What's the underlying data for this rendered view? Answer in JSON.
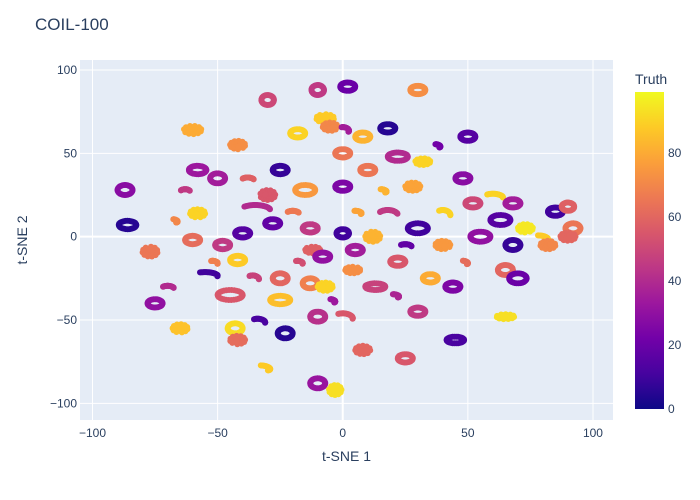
{
  "chart_data": {
    "type": "scatter",
    "title": "COIL-100",
    "xlabel": "t-SNE 1",
    "ylabel": "t-SNE 2",
    "xlim": [
      -105,
      108
    ],
    "ylim": [
      -110,
      106
    ],
    "xticks": [
      -100,
      -50,
      0,
      50,
      100
    ],
    "yticks": [
      -100,
      -50,
      0,
      50,
      100
    ],
    "xtick_labels": [
      "−100",
      "−50",
      "0",
      "50",
      "100"
    ],
    "ytick_labels": [
      "−100",
      "−50",
      "0",
      "50",
      "100"
    ],
    "grid": true,
    "colorbar": {
      "title": "Truth",
      "range": [
        0,
        99
      ],
      "ticks": [
        0,
        20,
        40,
        60,
        80
      ],
      "tick_labels": [
        "0",
        "20",
        "40",
        "60",
        "80"
      ],
      "colorscale": [
        "#0d0887",
        "#46039f",
        "#7201a8",
        "#9c179e",
        "#bd3786",
        "#d8576b",
        "#ed7953",
        "#fb9f3a",
        "#fdca26",
        "#f0f921"
      ]
    },
    "colors": {
      "plot_bg": "#e5ecf6",
      "grid": "#ffffff",
      "paper_bg": "#ffffff"
    },
    "clusters": [
      {
        "x": -87,
        "y": 28,
        "rx": 3,
        "ry": 3,
        "shape": "loop",
        "value": 28
      },
      {
        "x": -86,
        "y": 7,
        "rx": 3.5,
        "ry": 2.5,
        "shape": "loop",
        "value": 5
      },
      {
        "x": -77,
        "y": -9,
        "rx": 3,
        "ry": 3,
        "shape": "blob",
        "value": 65
      },
      {
        "x": -75,
        "y": -40,
        "rx": 3,
        "ry": 2.5,
        "shape": "loop",
        "value": 30
      },
      {
        "x": -65,
        "y": -55,
        "rx": 3,
        "ry": 2.5,
        "shape": "blob",
        "value": 86
      },
      {
        "x": -60,
        "y": 64,
        "rx": 3.5,
        "ry": 2.5,
        "shape": "blob",
        "value": 80
      },
      {
        "x": -58,
        "y": 40,
        "rx": 3.5,
        "ry": 2.5,
        "shape": "loop",
        "value": 33
      },
      {
        "x": -58,
        "y": 14,
        "rx": 3,
        "ry": 2.5,
        "shape": "blob",
        "value": 90
      },
      {
        "x": -60,
        "y": -2,
        "rx": 3,
        "ry": 2.5,
        "shape": "loop",
        "value": 62
      },
      {
        "x": -55,
        "y": -22,
        "rx": 5,
        "ry": 1.5,
        "shape": "arc",
        "value": 10
      },
      {
        "x": -48,
        "y": -5,
        "rx": 3,
        "ry": 2.5,
        "shape": "loop",
        "value": 45
      },
      {
        "x": -50,
        "y": 35,
        "rx": 3,
        "ry": 3,
        "shape": "loop",
        "value": 35
      },
      {
        "x": -42,
        "y": 55,
        "rx": 3,
        "ry": 2.5,
        "shape": "blob",
        "value": 72
      },
      {
        "x": -35,
        "y": 18,
        "rx": 6,
        "ry": 2,
        "shape": "arc",
        "value": 40
      },
      {
        "x": -40,
        "y": 2,
        "rx": 3,
        "ry": 2.5,
        "shape": "loop",
        "value": 15
      },
      {
        "x": -42,
        "y": -14,
        "rx": 3,
        "ry": 2.5,
        "shape": "loop",
        "value": 88
      },
      {
        "x": -45,
        "y": -35,
        "rx": 5,
        "ry": 3,
        "shape": "loop",
        "value": 55
      },
      {
        "x": -43,
        "y": -55,
        "rx": 3,
        "ry": 3,
        "shape": "loop",
        "value": 92
      },
      {
        "x": -42,
        "y": -62,
        "rx": 3,
        "ry": 2.5,
        "shape": "blob",
        "value": 62
      },
      {
        "x": -34,
        "y": -50,
        "rx": 3,
        "ry": 1.5,
        "shape": "arc",
        "value": 12
      },
      {
        "x": -33,
        "y": -78,
        "rx": 4,
        "ry": 1.5,
        "shape": "arc",
        "value": 88
      },
      {
        "x": -30,
        "y": 82,
        "rx": 2.5,
        "ry": 3,
        "shape": "loop",
        "value": 50
      },
      {
        "x": -25,
        "y": 40,
        "rx": 3,
        "ry": 2.5,
        "shape": "loop",
        "value": 8
      },
      {
        "x": -30,
        "y": 25,
        "rx": 3,
        "ry": 3,
        "shape": "blob",
        "value": 55
      },
      {
        "x": -28,
        "y": 8,
        "rx": 3,
        "ry": 2.5,
        "shape": "loop",
        "value": 18
      },
      {
        "x": -25,
        "y": -25,
        "rx": 3,
        "ry": 3,
        "shape": "loop",
        "value": 60
      },
      {
        "x": -25,
        "y": -38,
        "rx": 4,
        "ry": 2.5,
        "shape": "loop",
        "value": 85
      },
      {
        "x": -23,
        "y": -58,
        "rx": 3,
        "ry": 3,
        "shape": "loop",
        "value": 5
      },
      {
        "x": -18,
        "y": 62,
        "rx": 3,
        "ry": 2.5,
        "shape": "loop",
        "value": 90
      },
      {
        "x": -15,
        "y": 28,
        "rx": 4,
        "ry": 3,
        "shape": "loop",
        "value": 75
      },
      {
        "x": -13,
        "y": 5,
        "rx": 3,
        "ry": 2.5,
        "shape": "loop",
        "value": 45
      },
      {
        "x": -12,
        "y": -8,
        "rx": 3,
        "ry": 2,
        "shape": "blob",
        "value": 58
      },
      {
        "x": -13,
        "y": -28,
        "rx": 3,
        "ry": 3,
        "shape": "loop",
        "value": 68
      },
      {
        "x": -10,
        "y": -48,
        "rx": 3,
        "ry": 3,
        "shape": "loop",
        "value": 42
      },
      {
        "x": -10,
        "y": -88,
        "rx": 3,
        "ry": 3,
        "shape": "loop",
        "value": 32
      },
      {
        "x": -8,
        "y": -12,
        "rx": 3,
        "ry": 2.5,
        "shape": "loop",
        "value": 30
      },
      {
        "x": -10,
        "y": 88,
        "rx": 2.5,
        "ry": 3,
        "shape": "loop",
        "value": 45
      },
      {
        "x": -7,
        "y": 71,
        "rx": 3.5,
        "ry": 2.5,
        "shape": "blob",
        "value": 88
      },
      {
        "x": -5,
        "y": 66,
        "rx": 3,
        "ry": 2.5,
        "shape": "blob",
        "value": 70
      },
      {
        "x": 2,
        "y": 90,
        "rx": 3,
        "ry": 2.5,
        "shape": "loop",
        "value": 20
      },
      {
        "x": 0,
        "y": 65,
        "rx": 2.5,
        "ry": 1.5,
        "shape": "arc",
        "value": 35
      },
      {
        "x": 0,
        "y": 30,
        "rx": 3,
        "ry": 2.5,
        "shape": "loop",
        "value": 25
      },
      {
        "x": 0,
        "y": 2,
        "rx": 2.5,
        "ry": 2.5,
        "shape": "loop",
        "value": 10
      },
      {
        "x": 0,
        "y": 50,
        "rx": 3,
        "ry": 2.5,
        "shape": "loop",
        "value": 65
      },
      {
        "x": -7,
        "y": -30,
        "rx": 3,
        "ry": 2.5,
        "shape": "blob",
        "value": 90
      },
      {
        "x": 0,
        "y": -47,
        "rx": 4,
        "ry": 2,
        "shape": "arc",
        "value": 55
      },
      {
        "x": -3,
        "y": -92,
        "rx": 2.5,
        "ry": 3,
        "shape": "blob",
        "value": 93
      },
      {
        "x": 4,
        "y": -20,
        "rx": 3,
        "ry": 2,
        "shape": "blob",
        "value": 72
      },
      {
        "x": 5,
        "y": -8,
        "rx": 3,
        "ry": 2.5,
        "shape": "loop",
        "value": 35
      },
      {
        "x": 8,
        "y": 60,
        "rx": 3,
        "ry": 2.5,
        "shape": "loop",
        "value": 82
      },
      {
        "x": 10,
        "y": 40,
        "rx": 3,
        "ry": 2.5,
        "shape": "loop",
        "value": 65
      },
      {
        "x": 12,
        "y": 0,
        "rx": 3,
        "ry": 3,
        "shape": "blob",
        "value": 82
      },
      {
        "x": 13,
        "y": -30,
        "rx": 4,
        "ry": 2,
        "shape": "loop",
        "value": 48
      },
      {
        "x": 8,
        "y": -68,
        "rx": 3,
        "ry": 2.5,
        "shape": "blob",
        "value": 60
      },
      {
        "x": 18,
        "y": 65,
        "rx": 3,
        "ry": 2.5,
        "shape": "loop",
        "value": 5
      },
      {
        "x": 18,
        "y": 15,
        "rx": 4,
        "ry": 2,
        "shape": "arc",
        "value": 45
      },
      {
        "x": 22,
        "y": 48,
        "rx": 4,
        "ry": 2.5,
        "shape": "loop",
        "value": 40
      },
      {
        "x": 22,
        "y": -15,
        "rx": 3,
        "ry": 2.5,
        "shape": "loop",
        "value": 55
      },
      {
        "x": 25,
        "y": -73,
        "rx": 3,
        "ry": 2.5,
        "shape": "loop",
        "value": 55
      },
      {
        "x": 28,
        "y": 30,
        "rx": 3,
        "ry": 2.5,
        "shape": "blob",
        "value": 78
      },
      {
        "x": 30,
        "y": 88,
        "rx": 3,
        "ry": 2.5,
        "shape": "loop",
        "value": 72
      },
      {
        "x": 32,
        "y": 45,
        "rx": 3,
        "ry": 2,
        "shape": "blob",
        "value": 90
      },
      {
        "x": 30,
        "y": 5,
        "rx": 4,
        "ry": 3,
        "shape": "loop",
        "value": 10
      },
      {
        "x": 30,
        "y": -45,
        "rx": 3,
        "ry": 2.5,
        "shape": "loop",
        "value": 45
      },
      {
        "x": 35,
        "y": -25,
        "rx": 3,
        "ry": 2.5,
        "shape": "loop",
        "value": 80
      },
      {
        "x": 40,
        "y": 15,
        "rx": 3,
        "ry": 2,
        "shape": "arc",
        "value": 90
      },
      {
        "x": 40,
        "y": -5,
        "rx": 3,
        "ry": 2.5,
        "shape": "blob",
        "value": 75
      },
      {
        "x": 44,
        "y": -30,
        "rx": 3,
        "ry": 2.5,
        "shape": "loop",
        "value": 25
      },
      {
        "x": 45,
        "y": -62,
        "rx": 3.5,
        "ry": 2,
        "shape": "loop",
        "value": 12
      },
      {
        "x": 50,
        "y": 60,
        "rx": 3,
        "ry": 2.5,
        "shape": "loop",
        "value": 15
      },
      {
        "x": 48,
        "y": 35,
        "rx": 3,
        "ry": 2.5,
        "shape": "loop",
        "value": 28
      },
      {
        "x": 52,
        "y": 20,
        "rx": 3,
        "ry": 2.5,
        "shape": "loop",
        "value": 50
      },
      {
        "x": 55,
        "y": 0,
        "rx": 4,
        "ry": 3,
        "shape": "loop",
        "value": 30
      },
      {
        "x": 60,
        "y": 25,
        "rx": 4,
        "ry": 1.5,
        "shape": "arc",
        "value": 90
      },
      {
        "x": 63,
        "y": 10,
        "rx": 4,
        "ry": 3,
        "shape": "loop",
        "value": 15
      },
      {
        "x": 68,
        "y": 20,
        "rx": 3,
        "ry": 2.5,
        "shape": "loop",
        "value": 35
      },
      {
        "x": 65,
        "y": -20,
        "rx": 3,
        "ry": 3,
        "shape": "loop",
        "value": 60
      },
      {
        "x": 68,
        "y": -5,
        "rx": 3,
        "ry": 3,
        "shape": "loop",
        "value": 8
      },
      {
        "x": 70,
        "y": -25,
        "rx": 3.5,
        "ry": 3,
        "shape": "loop",
        "value": 20
      },
      {
        "x": 65,
        "y": -48,
        "rx": 3.5,
        "ry": 1.5,
        "shape": "blob",
        "value": 93
      },
      {
        "x": 73,
        "y": 5,
        "rx": 3,
        "ry": 2.5,
        "shape": "blob",
        "value": 95
      },
      {
        "x": 78,
        "y": 0,
        "rx": 4,
        "ry": 1.5,
        "shape": "arc",
        "value": 88
      },
      {
        "x": 82,
        "y": -5,
        "rx": 3,
        "ry": 2.5,
        "shape": "blob",
        "value": 70
      },
      {
        "x": 85,
        "y": 15,
        "rx": 3,
        "ry": 2.5,
        "shape": "loop",
        "value": 10
      },
      {
        "x": 92,
        "y": 5,
        "rx": 3,
        "ry": 3,
        "shape": "loop",
        "value": 65
      },
      {
        "x": 90,
        "y": 18,
        "rx": 2.5,
        "ry": 2.5,
        "shape": "loop",
        "value": 58
      },
      {
        "x": 90,
        "y": 0,
        "rx": 3,
        "ry": 2.5,
        "shape": "blob",
        "value": 60
      },
      {
        "x": -63,
        "y": 28,
        "rx": 2,
        "ry": 1,
        "shape": "arc",
        "value": 45
      },
      {
        "x": -68,
        "y": 10,
        "rx": 2,
        "ry": 1,
        "shape": "arc",
        "value": 70
      },
      {
        "x": -70,
        "y": -30,
        "rx": 2.5,
        "ry": 1,
        "shape": "arc",
        "value": 40
      },
      {
        "x": -52,
        "y": -15,
        "rx": 2,
        "ry": 1,
        "shape": "arc",
        "value": 68
      },
      {
        "x": -38,
        "y": 35,
        "rx": 2.5,
        "ry": 1,
        "shape": "arc",
        "value": 58
      },
      {
        "x": -36,
        "y": -24,
        "rx": 2.5,
        "ry": 1.5,
        "shape": "arc",
        "value": 48
      },
      {
        "x": -18,
        "y": -15,
        "rx": 2,
        "ry": 1,
        "shape": "arc",
        "value": 52
      },
      {
        "x": -20,
        "y": 15,
        "rx": 2.5,
        "ry": 1,
        "shape": "arc",
        "value": 66
      },
      {
        "x": 15,
        "y": 28,
        "rx": 2.5,
        "ry": 1,
        "shape": "arc",
        "value": 82
      },
      {
        "x": 20,
        "y": -35,
        "rx": 2.5,
        "ry": 1,
        "shape": "arc",
        "value": 38
      },
      {
        "x": 37,
        "y": 55,
        "rx": 2,
        "ry": 1,
        "shape": "arc",
        "value": 22
      },
      {
        "x": 48,
        "y": -15,
        "rx": 2,
        "ry": 1,
        "shape": "arc",
        "value": 62
      },
      {
        "x": -5,
        "y": -38,
        "rx": 2,
        "ry": 1,
        "shape": "arc",
        "value": 33
      },
      {
        "x": 5,
        "y": 15,
        "rx": 2.5,
        "ry": 1,
        "shape": "arc",
        "value": 78
      },
      {
        "x": 25,
        "y": -5,
        "rx": 2.5,
        "ry": 1,
        "shape": "arc",
        "value": 18
      }
    ]
  }
}
